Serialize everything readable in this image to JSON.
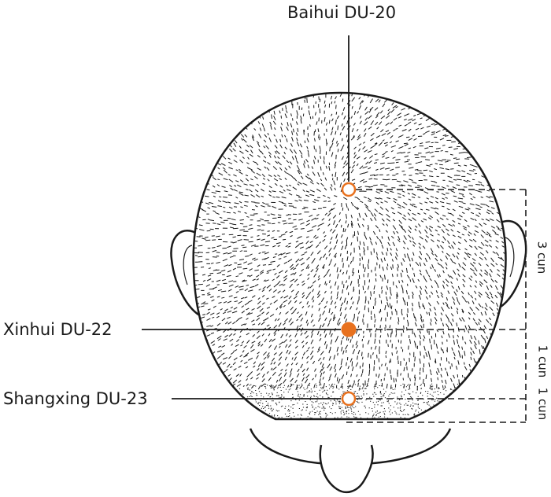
{
  "points": [
    {
      "label": "Baihui DU-20",
      "style": "open"
    },
    {
      "label": "Xinhui DU-22",
      "style": "filled"
    },
    {
      "label": "Shangxing DU-23",
      "style": "open"
    }
  ],
  "measurements": [
    "3 cun",
    "1 cun",
    "1 cun"
  ],
  "colors": {
    "point": "#e8711e",
    "ink": "#1a1a1a",
    "skin": "#ffffff"
  }
}
